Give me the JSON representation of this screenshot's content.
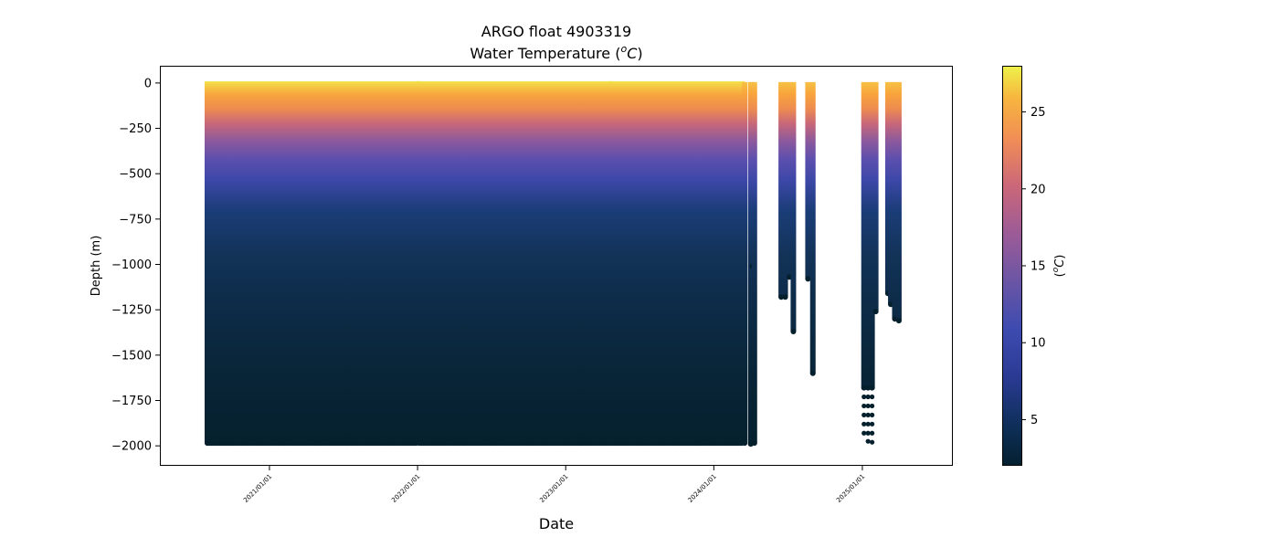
{
  "chart_data": {
    "type": "scatter",
    "title": "ARGO float 4903319",
    "subtitle_prefix": "Water Temperature (",
    "subtitle_unit_sup": "o",
    "subtitle_unit": "C",
    "subtitle_suffix": ")",
    "xlabel": "Date",
    "ylabel": "Depth (m)",
    "colorbar_label_prefix": "(",
    "colorbar_label_sup": "o",
    "colorbar_label_unit": "C",
    "colorbar_label_suffix": ")",
    "colormap": "thermal",
    "colorbar_range": [
      2.0,
      28.0
    ],
    "colorbar_ticks": [
      5,
      10,
      15,
      20,
      25
    ],
    "colorbar_tick_labels": [
      "5",
      "10",
      "15",
      "20",
      "25"
    ],
    "xlim": [
      "2020-04-06",
      "2025-08-12"
    ],
    "ylim": [
      -2110,
      95
    ],
    "x_ticks": [
      "2021-01-01",
      "2022-01-01",
      "2023-01-01",
      "2024-01-01",
      "2025-01-01"
    ],
    "x_tick_labels": [
      "2021/01/01",
      "2022/01/01",
      "2023/01/01",
      "2024/01/01",
      "2025/01/01"
    ],
    "y_ticks": [
      0,
      -250,
      -500,
      -750,
      -1000,
      -1250,
      -1500,
      -1750,
      -2000
    ],
    "y_tick_labels": [
      "0",
      "−250",
      "−500",
      "−750",
      "−1000",
      "−1250",
      "−1500",
      "−1750",
      "−2000"
    ],
    "grid": false,
    "profile_spacing_days": 5,
    "profile_segments": [
      {
        "start": "2020-08-01",
        "end": "2022-01-01",
        "bottom": -1985
      },
      {
        "start": "2022-01-05",
        "end": "2023-04-20",
        "bottom": -1985
      },
      {
        "start": "2023-04-25",
        "end": "2024-03-10",
        "bottom": -1985
      }
    ],
    "single_profiles": [
      {
        "date": "2024-03-17",
        "bottom": -1985
      },
      {
        "date": "2024-04-01",
        "bottom": -1990
      },
      {
        "date": "2024-04-05",
        "bottom": -1010
      },
      {
        "date": "2024-04-10",
        "bottom": -1985
      },
      {
        "date": "2024-06-15",
        "bottom": -1180
      },
      {
        "date": "2024-06-25",
        "bottom": -1180
      },
      {
        "date": "2024-07-05",
        "bottom": -1070
      },
      {
        "date": "2024-07-15",
        "bottom": -1370
      },
      {
        "date": "2024-08-20",
        "bottom": -1080
      },
      {
        "date": "2024-09-01",
        "bottom": -1600
      },
      {
        "date": "2025-01-05",
        "bottom": -1680
      },
      {
        "date": "2025-01-15",
        "bottom": -1680
      },
      {
        "date": "2025-01-25",
        "bottom": -1680
      },
      {
        "date": "2025-02-03",
        "bottom": -1260
      },
      {
        "date": "2025-03-05",
        "bottom": -1160
      },
      {
        "date": "2025-03-12",
        "bottom": -1220
      },
      {
        "date": "2025-03-22",
        "bottom": -1300
      },
      {
        "date": "2025-04-01",
        "bottom": -1310
      }
    ],
    "isolated_points": [
      {
        "date": "2025-01-05",
        "depths": [
          -1730,
          -1780,
          -1830,
          -1880,
          -1930
        ]
      },
      {
        "date": "2025-01-15",
        "depths": [
          -1730,
          -1780,
          -1830,
          -1880,
          -1930,
          -1975
        ]
      },
      {
        "date": "2025-01-25",
        "depths": [
          -1730,
          -1780,
          -1830,
          -1880,
          -1930,
          -1980
        ]
      }
    ]
  }
}
